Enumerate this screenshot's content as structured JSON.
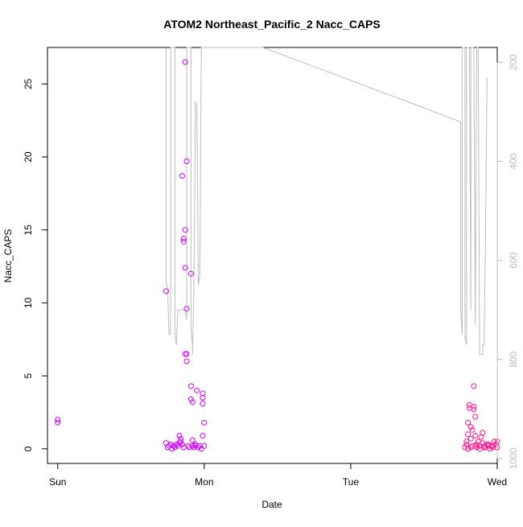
{
  "chart_data": {
    "type": "scatter",
    "title": "ATOM2 Northeast_Pacific_2 Nacc_CAPS",
    "xlabel": "Date",
    "ylabel": "Nacc_CAPS",
    "x_unit": "days",
    "xlim": [
      -0.07,
      3.0
    ],
    "ylim": [
      -1.0,
      27.5
    ],
    "x_ticks": [
      {
        "value": 0,
        "label": "Sun"
      },
      {
        "value": 1,
        "label": "Mon"
      },
      {
        "value": 2,
        "label": "Tue"
      },
      {
        "value": 3,
        "label": "Wed"
      }
    ],
    "y_ticks": [
      0,
      5,
      10,
      15,
      20,
      25
    ],
    "y2_ticks": [
      200,
      400,
      600,
      800,
      1000
    ],
    "y2lim": [
      1010,
      170
    ],
    "grid": false,
    "colors": {
      "points_day1": "#cc00ff",
      "points_day3": "#ff1493",
      "pressure_line": "#bdbdbd",
      "axis": "#000000",
      "right_axis": "#bdbdbd"
    },
    "points": [
      [
        0.0,
        2.0
      ],
      [
        0.0,
        1.8
      ],
      [
        0.74,
        10.8
      ],
      [
        0.74,
        0.4
      ],
      [
        0.75,
        0.1
      ],
      [
        0.76,
        0.2
      ],
      [
        0.77,
        0.3
      ],
      [
        0.78,
        0.0
      ],
      [
        0.79,
        0.2
      ],
      [
        0.8,
        0.1
      ],
      [
        0.81,
        0.3
      ],
      [
        0.82,
        0.2
      ],
      [
        0.83,
        0.9
      ],
      [
        0.84,
        0.5
      ],
      [
        0.84,
        0.7
      ],
      [
        0.85,
        0.3
      ],
      [
        0.85,
        18.7
      ],
      [
        0.86,
        14.2
      ],
      [
        0.86,
        14.4
      ],
      [
        0.87,
        15.0
      ],
      [
        0.87,
        26.5
      ],
      [
        0.87,
        12.4
      ],
      [
        0.87,
        6.5
      ],
      [
        0.88,
        6.5
      ],
      [
        0.88,
        6.0
      ],
      [
        0.88,
        9.6
      ],
      [
        0.88,
        19.7
      ],
      [
        0.89,
        0.2
      ],
      [
        0.9,
        0.1
      ],
      [
        0.91,
        12.0
      ],
      [
        0.91,
        4.3
      ],
      [
        0.91,
        3.4
      ],
      [
        0.92,
        3.2
      ],
      [
        0.92,
        0.2
      ],
      [
        0.93,
        0.1
      ],
      [
        0.94,
        0.3
      ],
      [
        0.95,
        4.0
      ],
      [
        0.96,
        0.1
      ],
      [
        0.97,
        0.2
      ],
      [
        0.98,
        0.0
      ],
      [
        0.99,
        3.8
      ],
      [
        0.99,
        3.5
      ],
      [
        0.99,
        3.1
      ],
      [
        0.99,
        0.9
      ],
      [
        1.0,
        1.8
      ],
      [
        1.0,
        0.2
      ],
      [
        0.92,
        0.6
      ],
      [
        0.94,
        0.2
      ],
      [
        0.86,
        0.1
      ],
      [
        0.83,
        0.4
      ],
      [
        2.78,
        0.1
      ],
      [
        2.79,
        0.3
      ],
      [
        2.79,
        0.5
      ],
      [
        2.8,
        1.0
      ],
      [
        2.8,
        1.8
      ],
      [
        2.81,
        2.8
      ],
      [
        2.81,
        3.0
      ],
      [
        2.82,
        1.5
      ],
      [
        2.82,
        0.7
      ],
      [
        2.83,
        0.2
      ],
      [
        2.83,
        1.3
      ],
      [
        2.84,
        4.3
      ],
      [
        2.84,
        2.9
      ],
      [
        2.84,
        2.7
      ],
      [
        2.85,
        2.2
      ],
      [
        2.85,
        0.9
      ],
      [
        2.86,
        0.3
      ],
      [
        2.86,
        0.1
      ],
      [
        2.87,
        0.5
      ],
      [
        2.88,
        0.2
      ],
      [
        2.89,
        0.8
      ],
      [
        2.9,
        1.1
      ],
      [
        2.9,
        0.4
      ],
      [
        2.91,
        0.2
      ],
      [
        2.92,
        0.1
      ],
      [
        2.93,
        0.3
      ],
      [
        2.94,
        0.2
      ],
      [
        2.95,
        0.0
      ],
      [
        2.96,
        0.2
      ],
      [
        2.97,
        0.1
      ],
      [
        2.98,
        0.5
      ],
      [
        2.99,
        0.3
      ],
      [
        3.0,
        0.5
      ],
      [
        2.8,
        0.0
      ],
      [
        2.82,
        0.1
      ],
      [
        2.85,
        0.2
      ],
      [
        2.88,
        0.0
      ],
      [
        2.91,
        0.1
      ],
      [
        2.94,
        0.3
      ],
      [
        2.97,
        0.2
      ],
      [
        3.0,
        0.1
      ]
    ],
    "pressure_series": [
      [
        0.74,
        170
      ],
      [
        0.74,
        640
      ],
      [
        0.75,
        660
      ],
      [
        0.76,
        750
      ],
      [
        0.77,
        750
      ],
      [
        0.77,
        170
      ],
      [
        0.8,
        170
      ],
      [
        0.8,
        750
      ],
      [
        0.81,
        770
      ],
      [
        0.82,
        700
      ],
      [
        0.83,
        700
      ],
      [
        0.84,
        700
      ],
      [
        0.85,
        700
      ],
      [
        0.87,
        700
      ],
      [
        0.88,
        720
      ],
      [
        0.88,
        170
      ],
      [
        0.91,
        170
      ],
      [
        0.91,
        740
      ],
      [
        0.92,
        770
      ],
      [
        0.92,
        790
      ],
      [
        0.93,
        650
      ],
      [
        0.94,
        280
      ],
      [
        0.95,
        290
      ],
      [
        0.96,
        650
      ],
      [
        0.97,
        630
      ],
      [
        0.98,
        170
      ],
      [
        1.4,
        170
      ],
      [
        2.75,
        320
      ],
      [
        2.75,
        700
      ],
      [
        2.76,
        750
      ],
      [
        2.76,
        170
      ],
      [
        2.78,
        170
      ],
      [
        2.78,
        760
      ],
      [
        2.79,
        770
      ],
      [
        2.79,
        170
      ],
      [
        2.81,
        170
      ],
      [
        2.82,
        700
      ],
      [
        2.82,
        170
      ],
      [
        2.84,
        170
      ],
      [
        2.85,
        730
      ],
      [
        2.86,
        170
      ],
      [
        2.87,
        170
      ],
      [
        2.88,
        790
      ],
      [
        2.89,
        790
      ],
      [
        2.9,
        790
      ],
      [
        2.9,
        770
      ],
      [
        2.91,
        770
      ],
      [
        2.92,
        560
      ],
      [
        2.93,
        230
      ]
    ]
  }
}
